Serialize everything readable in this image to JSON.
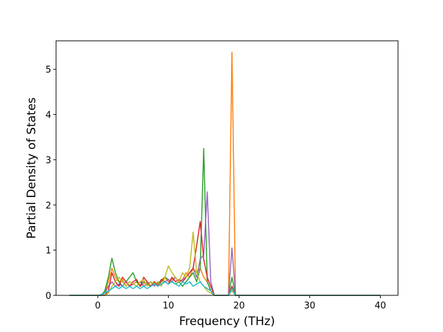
{
  "chart_data": {
    "type": "line",
    "xlabel": "Frequency (THz)",
    "ylabel": "Partial Density of States",
    "x": [
      -4,
      0,
      0.5,
      1,
      1.5,
      2,
      2.5,
      3,
      3.5,
      4,
      4.5,
      5,
      5.5,
      6,
      6.5,
      7,
      7.5,
      8,
      8.5,
      9,
      9.5,
      10,
      10.5,
      11,
      11.5,
      12,
      12.5,
      13,
      13.5,
      14,
      14.5,
      15,
      15.5,
      16,
      16.5,
      17,
      17.5,
      18,
      18.5,
      19,
      19.5,
      20,
      40
    ],
    "series": [
      {
        "color": "#ff7f0e",
        "values": [
          0,
          0,
          0,
          0.05,
          0.3,
          0.6,
          0.4,
          0.3,
          0.35,
          0.2,
          0.3,
          0.25,
          0.3,
          0.2,
          0.25,
          0.3,
          0.2,
          0.3,
          0.25,
          0.35,
          0.4,
          0.3,
          0.35,
          0.4,
          0.3,
          0.35,
          0.5,
          0.4,
          0.6,
          0.5,
          0.6,
          0.4,
          0.3,
          0.1,
          0,
          0,
          0,
          0,
          0,
          5.38,
          0,
          0,
          0
        ]
      },
      {
        "color": "#2ca02c",
        "values": [
          0,
          0,
          0,
          0.1,
          0.4,
          0.82,
          0.5,
          0.3,
          0.2,
          0.3,
          0.4,
          0.5,
          0.3,
          0.2,
          0.3,
          0.25,
          0.2,
          0.3,
          0.25,
          0.3,
          0.4,
          0.35,
          0.3,
          0.25,
          0.3,
          0.2,
          0.3,
          0.4,
          0.5,
          0.3,
          0.6,
          3.25,
          0.3,
          0.1,
          0,
          0,
          0,
          0,
          0,
          0.4,
          0,
          0,
          0
        ]
      },
      {
        "color": "#9467bd",
        "values": [
          0,
          0,
          0,
          0.05,
          0.2,
          0.3,
          0.2,
          0.25,
          0.2,
          0.3,
          0.2,
          0.25,
          0.2,
          0.3,
          0.2,
          0.25,
          0.3,
          0.2,
          0.3,
          0.25,
          0.3,
          0.35,
          0.3,
          0.4,
          0.3,
          0.35,
          0.4,
          0.5,
          0.6,
          0.4,
          0.8,
          0.9,
          2.29,
          0.3,
          0,
          0,
          0,
          0,
          0,
          1.05,
          0,
          0,
          0
        ]
      },
      {
        "color": "#d62728",
        "values": [
          0,
          0,
          0,
          0,
          0.1,
          0.5,
          0.3,
          0.2,
          0.4,
          0.3,
          0.2,
          0.3,
          0.35,
          0.2,
          0.4,
          0.3,
          0.2,
          0.3,
          0.2,
          0.35,
          0.3,
          0.25,
          0.4,
          0.3,
          0.35,
          0.3,
          0.4,
          0.5,
          0.6,
          1.1,
          1.63,
          0.8,
          0.4,
          0.2,
          0,
          0,
          0,
          0,
          0,
          0.2,
          0,
          0,
          0
        ]
      },
      {
        "color": "#bcbd22",
        "values": [
          0,
          0,
          0,
          0,
          0.05,
          0.2,
          0.3,
          0.4,
          0.3,
          0.2,
          0.3,
          0.25,
          0.2,
          0.3,
          0.35,
          0.2,
          0.3,
          0.25,
          0.3,
          0.2,
          0.4,
          0.65,
          0.5,
          0.4,
          0.3,
          0.5,
          0.4,
          0.6,
          1.4,
          0.5,
          0.3,
          0.2,
          0.1,
          0.05,
          0,
          0,
          0,
          0,
          0,
          0.1,
          0,
          0,
          0
        ]
      },
      {
        "color": "#17becf",
        "values": [
          0,
          0,
          0.02,
          0.05,
          0.1,
          0.15,
          0.2,
          0.15,
          0.2,
          0.15,
          0.2,
          0.15,
          0.2,
          0.15,
          0.2,
          0.15,
          0.2,
          0.25,
          0.2,
          0.25,
          0.3,
          0.25,
          0.3,
          0.25,
          0.2,
          0.3,
          0.25,
          0.3,
          0.2,
          0.25,
          0.3,
          0.2,
          0.15,
          0.1,
          0,
          0,
          0,
          0,
          0,
          0.15,
          0,
          0,
          0
        ]
      }
    ],
    "xlim": [
      -5.9,
      42.5
    ],
    "ylim": [
      0,
      5.63
    ],
    "xticks": [
      0,
      10,
      20,
      30,
      40
    ],
    "yticks": [
      0,
      1,
      2,
      3,
      4,
      5
    ]
  }
}
